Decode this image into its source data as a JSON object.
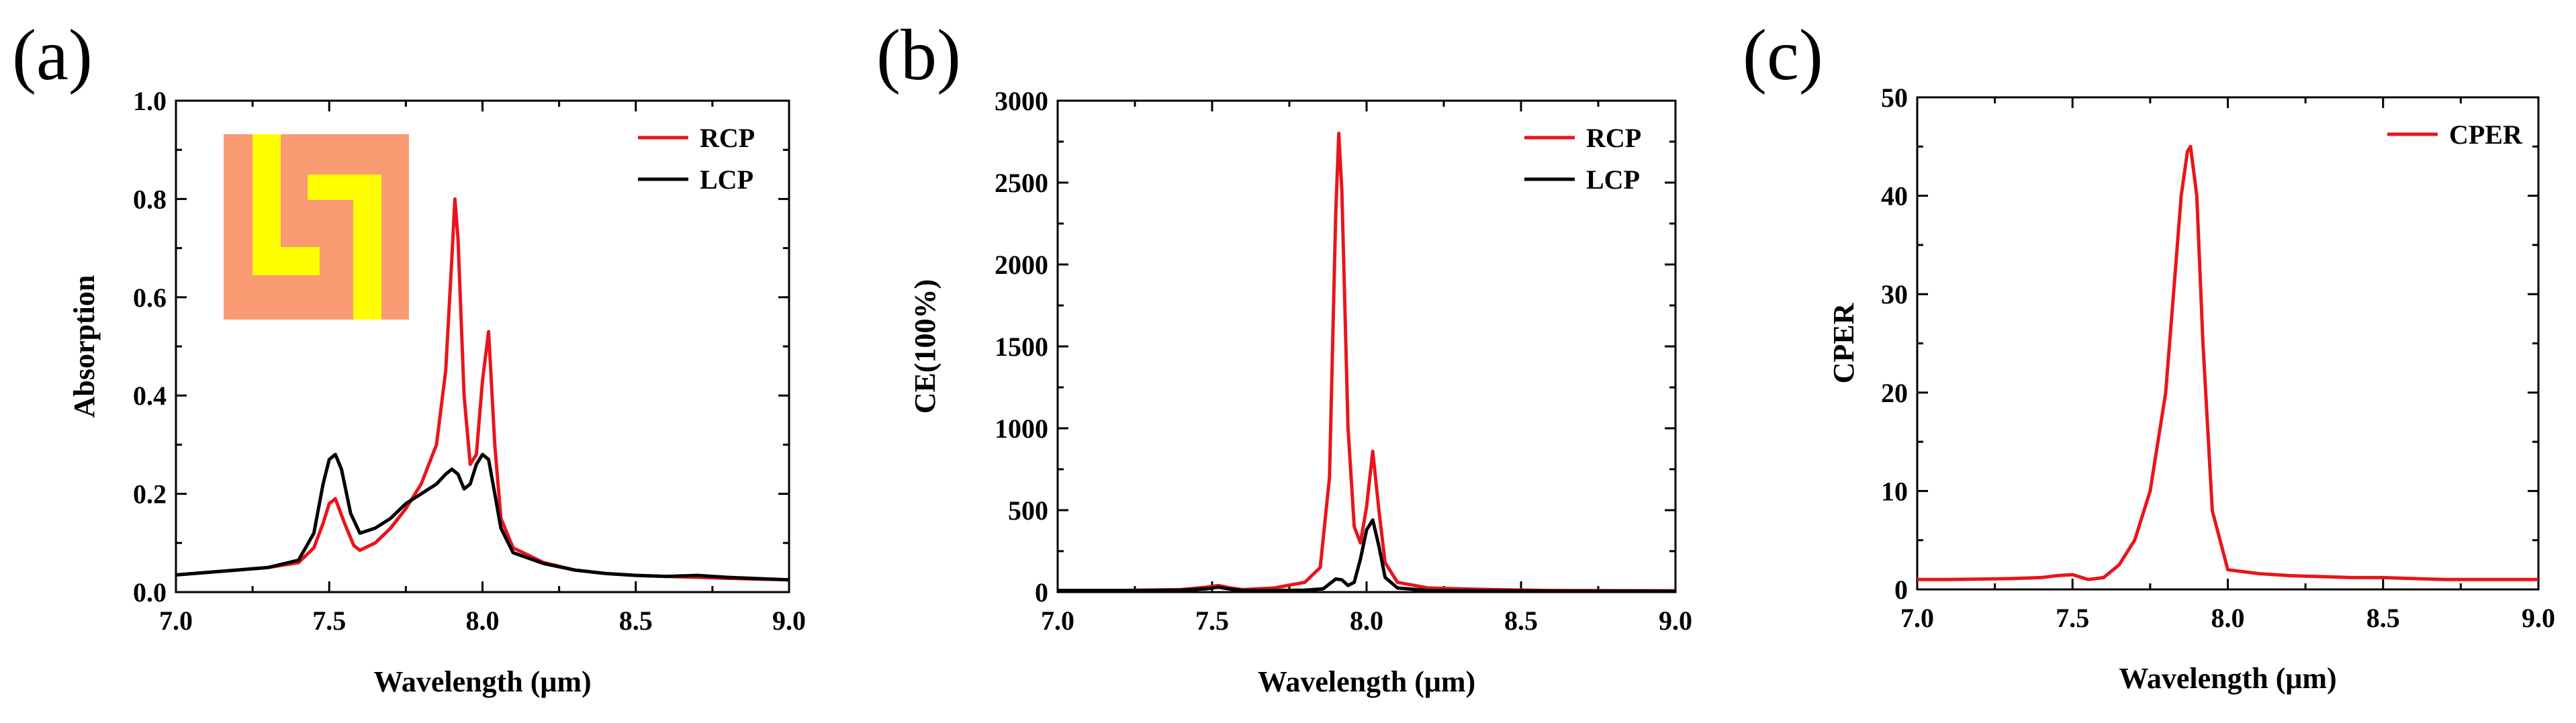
{
  "colors": {
    "rcp": "#e8151b",
    "lcp": "#000000",
    "cper": "#e8151b",
    "inset_bg": "#f89a72",
    "inset_fg": "#ffff00"
  },
  "chart_data": [
    {
      "panel": "(a)",
      "type": "line",
      "title": "",
      "xlabel": "Wavelength (μm)",
      "ylabel": "Absorption",
      "xlim": [
        7.0,
        9.0
      ],
      "ylim": [
        0.0,
        1.0
      ],
      "xticks": [
        "7.0",
        "7.5",
        "8.0",
        "8.5",
        "9.0"
      ],
      "yticks": [
        "0.0",
        "0.2",
        "0.4",
        "0.6",
        "0.8",
        "1.0"
      ],
      "legend": "top-right",
      "inset": "L-shaped chiral metasurface unit cell",
      "series": [
        {
          "name": "RCP",
          "color_key": "rcp",
          "x": [
            7.0,
            7.1,
            7.2,
            7.3,
            7.4,
            7.45,
            7.48,
            7.5,
            7.52,
            7.55,
            7.58,
            7.6,
            7.65,
            7.7,
            7.75,
            7.8,
            7.85,
            7.88,
            7.9,
            7.91,
            7.92,
            7.94,
            7.96,
            7.98,
            8.0,
            8.02,
            8.04,
            8.06,
            8.1,
            8.2,
            8.3,
            8.4,
            8.5,
            8.6,
            8.7,
            8.8,
            9.0
          ],
          "values": [
            0.035,
            0.04,
            0.045,
            0.05,
            0.06,
            0.09,
            0.14,
            0.18,
            0.19,
            0.14,
            0.095,
            0.085,
            0.1,
            0.13,
            0.17,
            0.22,
            0.3,
            0.45,
            0.68,
            0.8,
            0.72,
            0.4,
            0.26,
            0.28,
            0.43,
            0.53,
            0.3,
            0.15,
            0.09,
            0.06,
            0.045,
            0.038,
            0.034,
            0.032,
            0.03,
            0.028,
            0.025
          ]
        },
        {
          "name": "LCP",
          "color_key": "lcp",
          "x": [
            7.0,
            7.1,
            7.2,
            7.3,
            7.4,
            7.45,
            7.48,
            7.5,
            7.52,
            7.54,
            7.57,
            7.6,
            7.65,
            7.7,
            7.75,
            7.8,
            7.85,
            7.88,
            7.9,
            7.92,
            7.94,
            7.96,
            7.98,
            8.0,
            8.02,
            8.04,
            8.06,
            8.1,
            8.2,
            8.3,
            8.4,
            8.5,
            8.6,
            8.7,
            8.8,
            9.0
          ],
          "values": [
            0.035,
            0.04,
            0.045,
            0.05,
            0.065,
            0.12,
            0.22,
            0.27,
            0.28,
            0.25,
            0.16,
            0.12,
            0.13,
            0.15,
            0.18,
            0.2,
            0.22,
            0.24,
            0.25,
            0.24,
            0.21,
            0.22,
            0.26,
            0.28,
            0.27,
            0.2,
            0.13,
            0.08,
            0.058,
            0.045,
            0.038,
            0.034,
            0.032,
            0.034,
            0.03,
            0.025
          ]
        }
      ]
    },
    {
      "panel": "(b)",
      "type": "line",
      "title": "",
      "xlabel": "Wavelength (μm)",
      "ylabel": "CE(100%)",
      "xlim": [
        7.0,
        9.0
      ],
      "ylim": [
        0,
        3000
      ],
      "xticks": [
        "7.0",
        "7.5",
        "8.0",
        "8.5",
        "9.0"
      ],
      "yticks": [
        "0",
        "500",
        "1000",
        "1500",
        "2000",
        "2500",
        "3000"
      ],
      "legend": "top-right",
      "series": [
        {
          "name": "RCP",
          "color_key": "rcp",
          "x": [
            7.0,
            7.2,
            7.4,
            7.48,
            7.52,
            7.56,
            7.6,
            7.7,
            7.8,
            7.85,
            7.88,
            7.9,
            7.91,
            7.92,
            7.94,
            7.96,
            7.98,
            8.0,
            8.02,
            8.04,
            8.06,
            8.1,
            8.2,
            8.4,
            8.6,
            9.0
          ],
          "values": [
            10,
            10,
            15,
            30,
            40,
            25,
            15,
            25,
            60,
            150,
            700,
            2300,
            2800,
            2450,
            1000,
            400,
            300,
            520,
            860,
            500,
            180,
            60,
            25,
            15,
            10,
            8
          ]
        },
        {
          "name": "LCP",
          "color_key": "lcp",
          "x": [
            7.0,
            7.2,
            7.4,
            7.48,
            7.52,
            7.56,
            7.6,
            7.7,
            7.8,
            7.86,
            7.9,
            7.92,
            7.94,
            7.96,
            7.98,
            8.0,
            8.02,
            8.04,
            8.06,
            8.1,
            8.2,
            8.4,
            8.6,
            9.0
          ],
          "values": [
            10,
            10,
            12,
            20,
            30,
            18,
            10,
            10,
            12,
            20,
            80,
            75,
            40,
            60,
            200,
            380,
            440,
            280,
            90,
            25,
            10,
            8,
            6,
            5
          ]
        }
      ]
    },
    {
      "panel": "(c)",
      "type": "line",
      "title": "",
      "xlabel": "Wavelength (μm)",
      "ylabel": "CPER",
      "xlim": [
        7.0,
        9.0
      ],
      "ylim": [
        0,
        50
      ],
      "xticks": [
        "7.0",
        "7.5",
        "8.0",
        "8.5",
        "9.0"
      ],
      "yticks": [
        "0",
        "10",
        "20",
        "30",
        "40",
        "50"
      ],
      "legend": "top-right",
      "series": [
        {
          "name": "CPER",
          "color_key": "cper",
          "x": [
            7.0,
            7.1,
            7.2,
            7.3,
            7.4,
            7.45,
            7.5,
            7.55,
            7.6,
            7.65,
            7.7,
            7.75,
            7.8,
            7.83,
            7.85,
            7.87,
            7.88,
            7.9,
            7.92,
            7.95,
            8.0,
            8.1,
            8.2,
            8.3,
            8.4,
            8.5,
            8.6,
            8.7,
            8.8,
            9.0
          ],
          "values": [
            1.0,
            1.0,
            1.05,
            1.1,
            1.2,
            1.4,
            1.5,
            1.0,
            1.2,
            2.5,
            5.0,
            10.0,
            20.0,
            32.0,
            40.0,
            44.5,
            45.0,
            40.0,
            25.0,
            8.0,
            2.0,
            1.6,
            1.4,
            1.3,
            1.2,
            1.2,
            1.1,
            1.0,
            1.0,
            1.0
          ]
        }
      ]
    }
  ]
}
